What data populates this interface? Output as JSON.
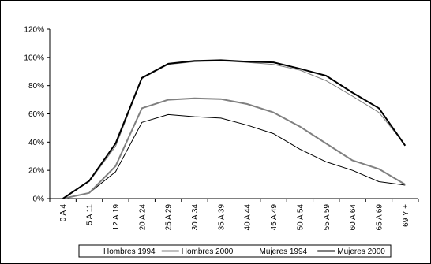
{
  "chart_data": {
    "type": "line",
    "title": "",
    "xlabel": "",
    "ylabel": "",
    "categories": [
      "0 A 4",
      "5 A 11",
      "12 A 19",
      "20 A 24",
      "25 A 29",
      "30 A 34",
      "35 A 39",
      "40 A 44",
      "45 A 49",
      "50 A 54",
      "55 A 59",
      "60 A 64",
      "65 A 69",
      "69 Y +"
    ],
    "ylim": [
      0,
      120
    ],
    "yticks": [
      "0%",
      "20%",
      "40%",
      "60%",
      "80%",
      "100%",
      "120%"
    ],
    "grid": false,
    "legend_position": "bottom",
    "series": [
      {
        "name": "Hombres 1994",
        "values": [
          0,
          4,
          19,
          54,
          59.5,
          58,
          57,
          52,
          46,
          35,
          26,
          20,
          12,
          9.5
        ],
        "color": "#000000"
      },
      {
        "name": "Hombres 2000",
        "values": [
          0,
          4,
          23,
          64,
          70,
          71,
          70.5,
          67,
          61,
          51,
          39,
          27,
          21,
          10
        ],
        "color": "#808080"
      },
      {
        "name": "Mujeres 1994",
        "values": [
          0,
          12,
          37,
          85,
          95,
          97,
          97.5,
          96.5,
          95,
          91,
          83.5,
          72.5,
          61,
          38
        ],
        "color": "#808080"
      },
      {
        "name": "Mujeres 2000",
        "values": [
          0,
          12.5,
          39,
          85.5,
          95.5,
          97.5,
          98,
          97,
          96.5,
          92,
          87,
          75,
          64,
          37.5
        ],
        "color": "#000000"
      }
    ]
  }
}
